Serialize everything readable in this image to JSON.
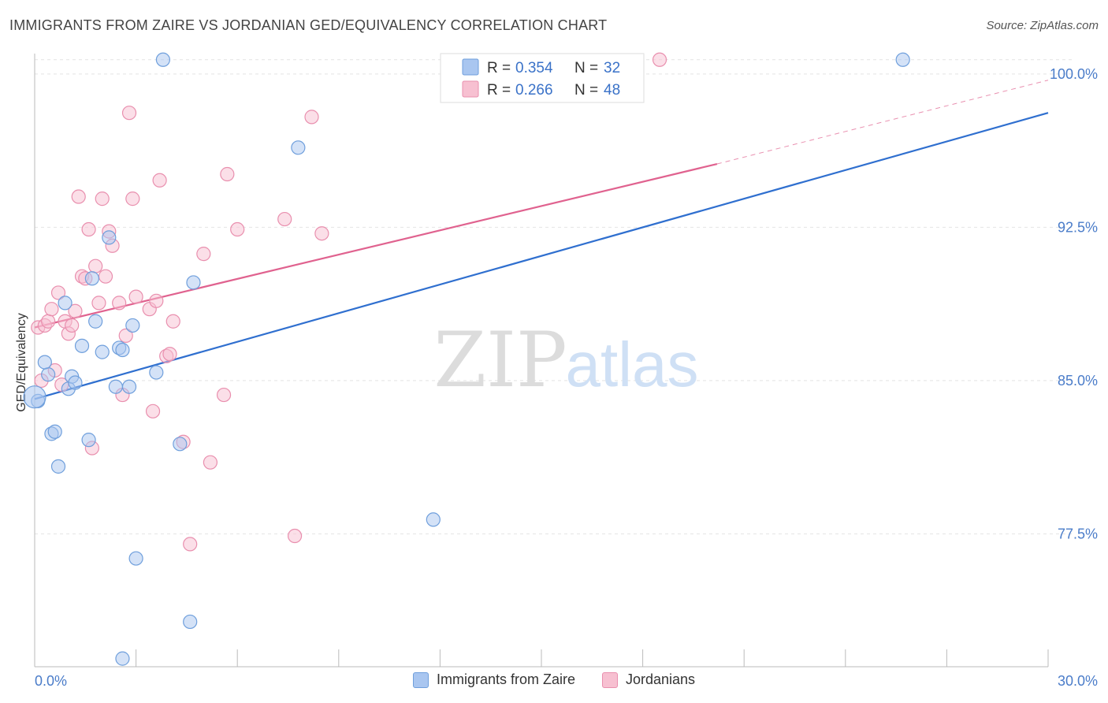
{
  "title": "IMMIGRANTS FROM ZAIRE VS JORDANIAN GED/EQUIVALENCY CORRELATION CHART",
  "source": "Source: ZipAtlas.com",
  "watermark": {
    "zip": "ZIP",
    "atlas": "atlas"
  },
  "legend_top": {
    "r_label": "R =",
    "n_label": "N =",
    "rows": [
      {
        "r": "0.354",
        "n": "32",
        "color": "#a9c6f0",
        "stroke": "#6f9fdc"
      },
      {
        "r": "0.266",
        "n": "48",
        "color": "#f7c0d1",
        "stroke": "#e98fae"
      }
    ]
  },
  "chart_data": {
    "type": "scatter",
    "title": "IMMIGRANTS FROM ZAIRE VS JORDANIAN GED/EQUIVALENCY CORRELATION CHART",
    "xlabel": "",
    "ylabel": "GED/Equivalency",
    "xlim": [
      0,
      30
    ],
    "ylim": [
      71,
      101
    ],
    "x_ticks": [
      0,
      3,
      6,
      9,
      12,
      15,
      18,
      21,
      24,
      27,
      30
    ],
    "x_tick_labels": {
      "0": "0.0%",
      "30": "30.0%"
    },
    "y_ticks": [
      77.5,
      85.0,
      92.5,
      100.0
    ],
    "y_tick_labels": [
      "77.5%",
      "85.0%",
      "92.5%",
      "100.0%"
    ],
    "grid": true,
    "legend": "top-center and bottom",
    "series": [
      {
        "name": "Immigrants from Zaire",
        "color": "#a9c6f0",
        "stroke": "#6f9fdc",
        "line_color": "#2f6fcf",
        "trend": {
          "x0": 0,
          "y0": 84.1,
          "x1": 30,
          "y1": 98.1,
          "dashed_from": null
        },
        "points": [
          [
            0.1,
            84.0
          ],
          [
            0.4,
            85.3
          ],
          [
            0.3,
            85.9
          ],
          [
            0.5,
            82.4
          ],
          [
            0.6,
            82.5
          ],
          [
            0.7,
            80.8
          ],
          [
            0.9,
            88.8
          ],
          [
            1.0,
            84.6
          ],
          [
            1.1,
            85.2
          ],
          [
            1.2,
            84.9
          ],
          [
            1.4,
            86.7
          ],
          [
            1.6,
            82.1
          ],
          [
            1.7,
            90.0
          ],
          [
            1.8,
            87.9
          ],
          [
            2.0,
            86.4
          ],
          [
            2.2,
            92.0
          ],
          [
            2.4,
            84.7
          ],
          [
            2.5,
            86.6
          ],
          [
            2.6,
            86.5
          ],
          [
            2.8,
            84.7
          ],
          [
            2.9,
            87.7
          ],
          [
            3.0,
            76.3
          ],
          [
            3.6,
            85.4
          ],
          [
            4.3,
            81.9
          ],
          [
            4.6,
            73.2
          ],
          [
            4.7,
            89.8
          ],
          [
            2.6,
            71.4
          ],
          [
            3.8,
            100.7
          ],
          [
            7.8,
            96.4
          ],
          [
            11.8,
            78.2
          ],
          [
            25.7,
            100.7
          ],
          [
            0.0,
            84.2
          ]
        ]
      },
      {
        "name": "Jordanians",
        "color": "#f7c0d1",
        "stroke": "#e98fae",
        "line_color": "#e0628f",
        "trend": {
          "x0": 0,
          "y0": 87.6,
          "x1": 20.2,
          "y1": 95.6,
          "x2": 30,
          "y2": 99.7
        },
        "points": [
          [
            0.1,
            87.6
          ],
          [
            0.2,
            85.0
          ],
          [
            0.3,
            87.7
          ],
          [
            0.4,
            87.9
          ],
          [
            0.5,
            88.5
          ],
          [
            0.6,
            85.5
          ],
          [
            0.7,
            89.3
          ],
          [
            0.8,
            84.8
          ],
          [
            0.9,
            87.9
          ],
          [
            1.0,
            87.3
          ],
          [
            1.1,
            87.7
          ],
          [
            1.2,
            88.4
          ],
          [
            1.3,
            94.0
          ],
          [
            1.4,
            90.1
          ],
          [
            1.5,
            90.0
          ],
          [
            1.6,
            92.4
          ],
          [
            1.7,
            81.7
          ],
          [
            1.8,
            90.6
          ],
          [
            1.9,
            88.8
          ],
          [
            2.0,
            93.9
          ],
          [
            2.1,
            90.1
          ],
          [
            2.2,
            92.3
          ],
          [
            2.3,
            91.6
          ],
          [
            2.5,
            88.8
          ],
          [
            2.6,
            84.3
          ],
          [
            2.7,
            87.2
          ],
          [
            2.8,
            98.1
          ],
          [
            2.9,
            93.9
          ],
          [
            3.0,
            89.1
          ],
          [
            3.4,
            88.5
          ],
          [
            3.5,
            83.5
          ],
          [
            3.6,
            88.9
          ],
          [
            3.7,
            94.8
          ],
          [
            3.9,
            86.2
          ],
          [
            4.0,
            86.3
          ],
          [
            4.1,
            87.9
          ],
          [
            4.4,
            82.0
          ],
          [
            4.6,
            77.0
          ],
          [
            5.0,
            91.2
          ],
          [
            5.2,
            81.0
          ],
          [
            5.6,
            84.3
          ],
          [
            5.7,
            95.1
          ],
          [
            6.0,
            92.4
          ],
          [
            7.4,
            92.9
          ],
          [
            7.7,
            77.4
          ],
          [
            8.2,
            97.9
          ],
          [
            8.5,
            92.2
          ],
          [
            18.5,
            100.7
          ]
        ]
      }
    ]
  }
}
